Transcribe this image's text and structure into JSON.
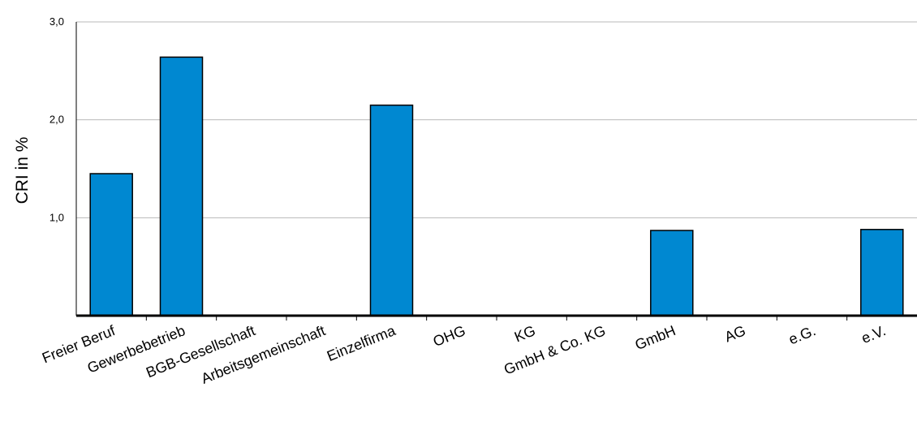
{
  "chart_data": {
    "type": "bar",
    "title": "",
    "xlabel": "",
    "ylabel": "CRI in %",
    "ylim": [
      0,
      3
    ],
    "yticks": [
      "1,0",
      "2,0",
      "3,0"
    ],
    "ytick_values": [
      1,
      2,
      3
    ],
    "grid": true,
    "bar_color": "#0088d1",
    "categories": [
      "Freier Beruf",
      "Gewerbebetrieb",
      "BGB-Gesellschaft",
      "Arbeitsgemeinschaft",
      "Einzelfirma",
      "OHG",
      "KG",
      "GmbH & Co. KG",
      "GmbH",
      "AG",
      "e.G.",
      "e.V."
    ],
    "values": [
      1.45,
      2.64,
      0,
      0,
      2.15,
      0,
      0,
      0,
      0.87,
      0,
      0,
      0.88
    ]
  }
}
